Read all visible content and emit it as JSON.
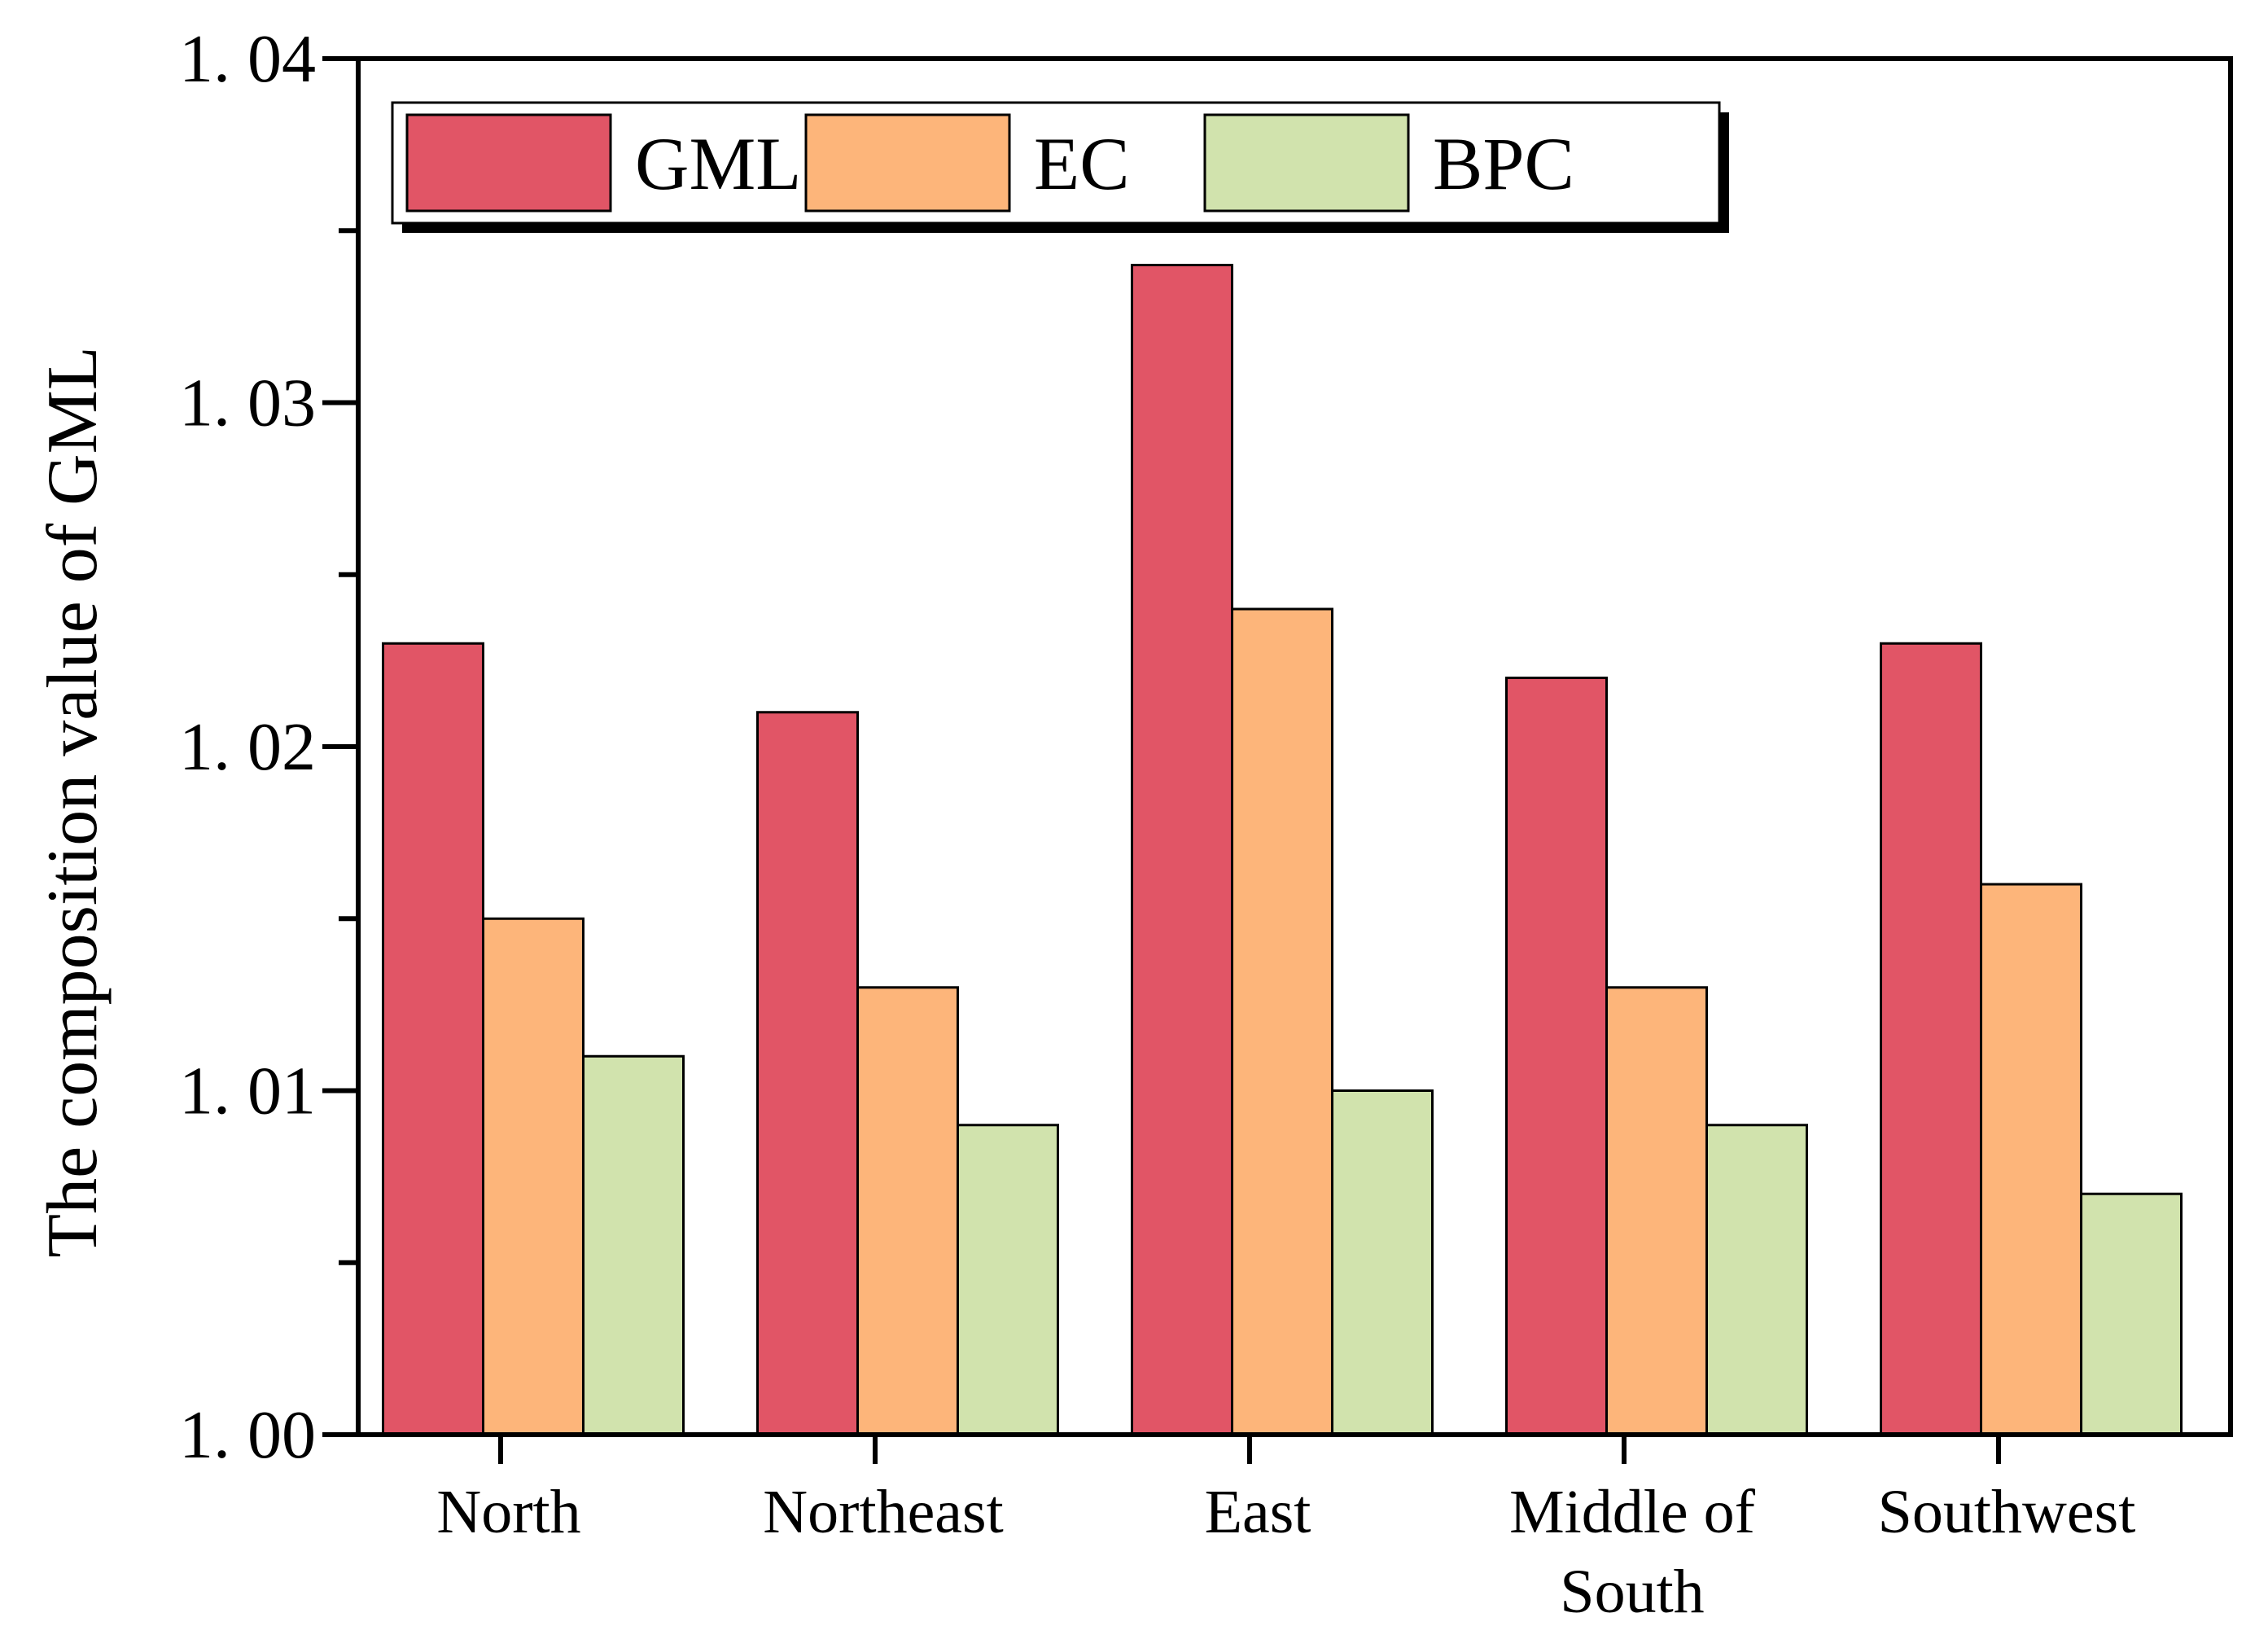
{
  "colors": {
    "GML": "#e15566",
    "EC": "#fdb57a",
    "BPC": "#d1e3ad",
    "axis": "#000000"
  },
  "chart_data": {
    "type": "bar",
    "title": "",
    "xlabel": "",
    "ylabel": "The composition value of GML",
    "ylim": [
      1.0,
      1.04
    ],
    "yticks": [
      "1. 00",
      "1. 01",
      "1. 02",
      "1. 03",
      "1. 04"
    ],
    "ytick_values": [
      1.0,
      1.01,
      1.02,
      1.03,
      1.04
    ],
    "legend_position": "top-left",
    "categories": [
      [
        "North"
      ],
      [
        "Northeast"
      ],
      [
        "East"
      ],
      [
        "Middle of",
        "South"
      ],
      [
        "Southwest"
      ]
    ],
    "series": [
      {
        "name": "GML",
        "values": [
          1.023,
          1.021,
          1.034,
          1.022,
          1.023
        ]
      },
      {
        "name": "EC",
        "values": [
          1.015,
          1.013,
          1.024,
          1.013,
          1.016
        ]
      },
      {
        "name": "BPC",
        "values": [
          1.011,
          1.009,
          1.01,
          1.009,
          1.007
        ]
      }
    ]
  }
}
